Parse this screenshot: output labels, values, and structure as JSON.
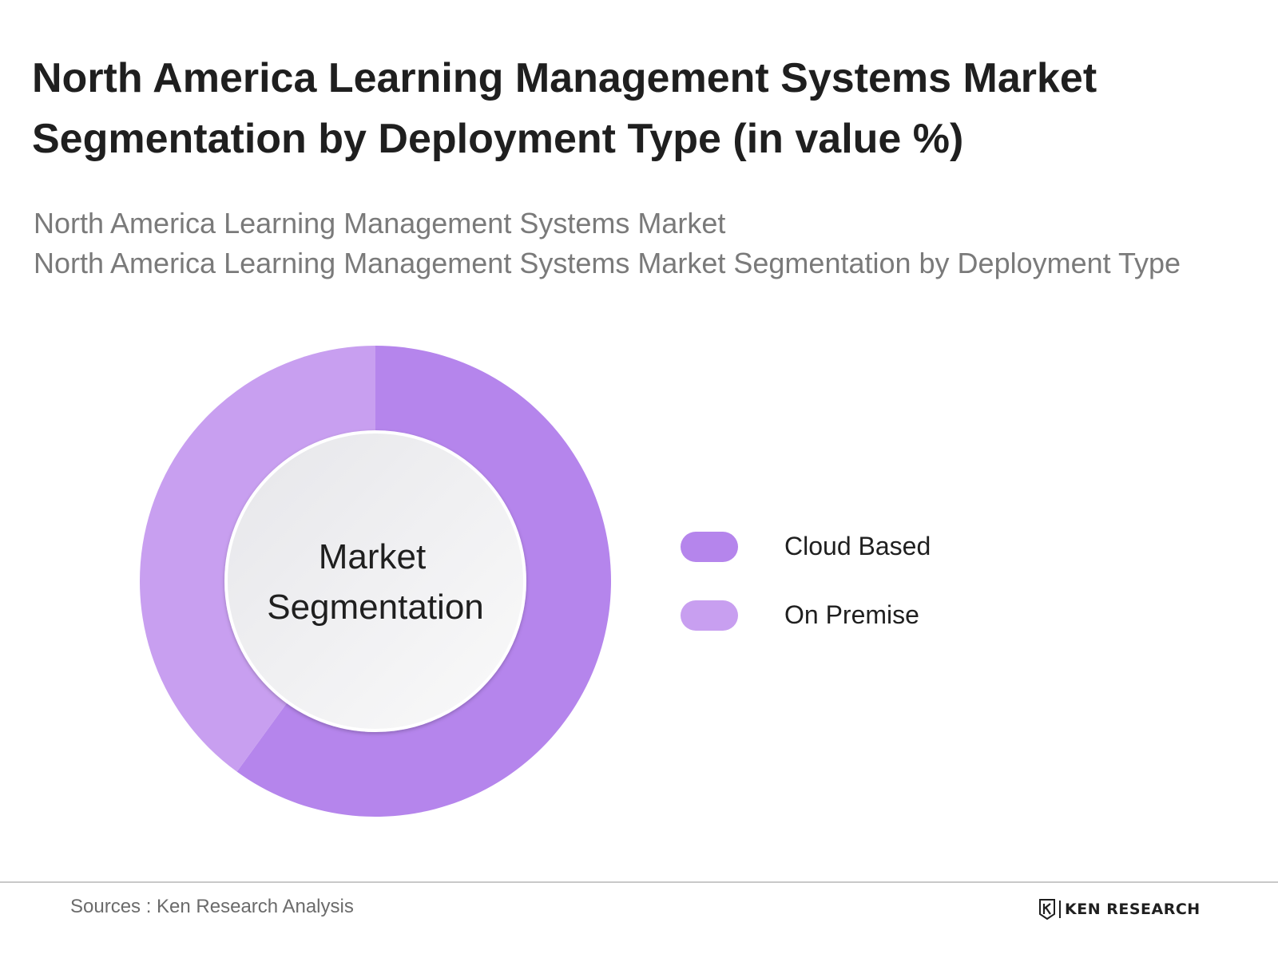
{
  "header": {
    "title_line1": "North America Learning Management Systems Market",
    "title_line2": "Segmentation by Deployment Type (in value %)",
    "subtitle_line1": "North America Learning Management Systems Market",
    "subtitle_line2": "North America Learning Management Systems Market Segmentation by Deployment Type"
  },
  "chart_data": {
    "type": "pie",
    "variant": "donut",
    "center_label_line1": "Market",
    "center_label_line2": "Segmentation",
    "categories": [
      "Cloud Based",
      "On Premise"
    ],
    "values": [
      60,
      40
    ],
    "colors": [
      "#b585ec",
      "#c89ff0"
    ],
    "legend_position": "right",
    "start_angle": "top",
    "direction": "clockwise"
  },
  "legend": {
    "items": [
      {
        "label": "Cloud Based",
        "color": "#b585ec"
      },
      {
        "label": "On Premise",
        "color": "#c89ff0"
      }
    ]
  },
  "footer": {
    "sources": "Sources : Ken Research Analysis",
    "brand": "KEN RESEARCH"
  }
}
